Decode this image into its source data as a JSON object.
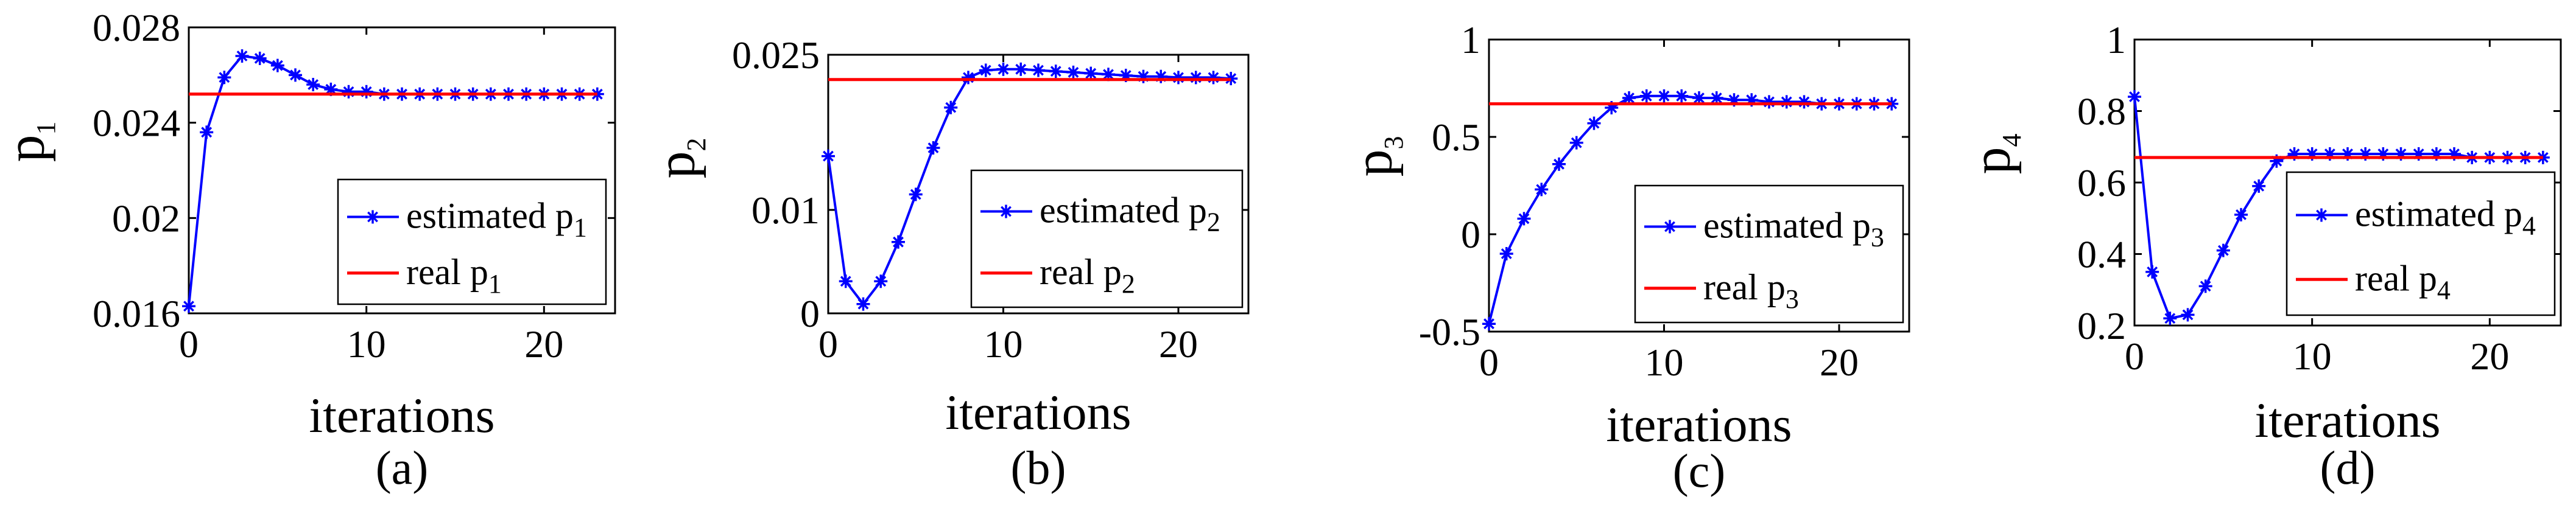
{
  "figure": {
    "colors": {
      "estimated": "#0000ff",
      "real": "#ff0000",
      "axis": "#000000",
      "background": "#ffffff"
    },
    "markers": {
      "estimated": "asterisk"
    }
  },
  "chart_data": [
    {
      "type": "line",
      "panel_label": "(a)",
      "xlabel": "iterations",
      "ylabel": {
        "base": "p",
        "sub": "1"
      },
      "xlim": [
        0,
        24
      ],
      "ylim": [
        0.016,
        0.028
      ],
      "xticks": [
        0,
        10,
        20
      ],
      "xtick_labels": [
        "0",
        "10",
        "20"
      ],
      "yticks": [
        0.016,
        0.02,
        0.024,
        0.028
      ],
      "ytick_labels": [
        "0.016",
        "0.02",
        "0.024",
        "0.028"
      ],
      "grid": false,
      "legend": {
        "placement": "bottom-right"
      },
      "series": [
        {
          "legend": {
            "prefix": "estimated p",
            "sub": "1"
          },
          "color": "#0000ff",
          "marker": "asterisk",
          "x": [
            0,
            1,
            2,
            3,
            4,
            5,
            6,
            7,
            8,
            9,
            10,
            11,
            12,
            13,
            14,
            15,
            16,
            17,
            18,
            19,
            20,
            21,
            22,
            23
          ],
          "y": [
            0.0163,
            0.0236,
            0.0259,
            0.0268,
            0.0267,
            0.0264,
            0.026,
            0.0256,
            0.0254,
            0.0253,
            0.0253,
            0.0252,
            0.0252,
            0.0252,
            0.0252,
            0.0252,
            0.0252,
            0.0252,
            0.0252,
            0.0252,
            0.0252,
            0.0252,
            0.0252,
            0.0252
          ]
        },
        {
          "legend": {
            "prefix": "real p",
            "sub": "1"
          },
          "color": "#ff0000",
          "x": [
            0,
            23
          ],
          "y": [
            0.0252,
            0.0252
          ]
        }
      ]
    },
    {
      "type": "line",
      "panel_label": "(b)",
      "xlabel": "iterations",
      "ylabel": {
        "base": "p",
        "sub": "2"
      },
      "xlim": [
        0,
        24
      ],
      "ylim": [
        0,
        0.025
      ],
      "xticks": [
        0,
        10,
        20
      ],
      "xtick_labels": [
        "0",
        "10",
        "20"
      ],
      "yticks": [
        0,
        0.01,
        0.025
      ],
      "ytick_labels": [
        "0",
        "0.01",
        "0.025"
      ],
      "grid": false,
      "legend": {
        "placement": "right"
      },
      "series": [
        {
          "legend": {
            "prefix": "estimated p",
            "sub": "2"
          },
          "color": "#0000ff",
          "marker": "asterisk",
          "x": [
            0,
            1,
            2,
            3,
            4,
            5,
            6,
            7,
            8,
            9,
            10,
            11,
            12,
            13,
            14,
            15,
            16,
            17,
            18,
            19,
            20,
            21,
            22,
            23
          ],
          "y": [
            0.0152,
            0.0031,
            0.0009,
            0.0031,
            0.0069,
            0.0115,
            0.016,
            0.0199,
            0.0228,
            0.0235,
            0.0236,
            0.0236,
            0.0235,
            0.0234,
            0.0233,
            0.0232,
            0.0231,
            0.023,
            0.0229,
            0.0229,
            0.0228,
            0.0228,
            0.0228,
            0.0227
          ]
        },
        {
          "legend": {
            "prefix": "real p",
            "sub": "2"
          },
          "color": "#ff0000",
          "x": [
            0,
            23
          ],
          "y": [
            0.0226,
            0.0226
          ]
        }
      ]
    },
    {
      "type": "line",
      "panel_label": "(c)",
      "xlabel": "iterations",
      "ylabel": {
        "base": "p",
        "sub": "3"
      },
      "xlim": [
        0,
        24
      ],
      "ylim": [
        -0.5,
        1
      ],
      "xticks": [
        0,
        10,
        20
      ],
      "xtick_labels": [
        "0",
        "10",
        "20"
      ],
      "yticks": [
        -0.5,
        0,
        0.5,
        1
      ],
      "ytick_labels": [
        "-0.5",
        "0",
        "0.5",
        "1"
      ],
      "grid": false,
      "legend": {
        "placement": "bottom-right"
      },
      "series": [
        {
          "legend": {
            "prefix": "estimated p",
            "sub": "3"
          },
          "color": "#0000ff",
          "marker": "asterisk",
          "x": [
            0,
            1,
            2,
            3,
            4,
            5,
            6,
            7,
            8,
            9,
            10,
            11,
            12,
            13,
            14,
            15,
            16,
            17,
            18,
            19,
            20,
            21,
            22,
            23
          ],
          "y": [
            -0.46,
            -0.1,
            0.08,
            0.23,
            0.36,
            0.47,
            0.57,
            0.65,
            0.7,
            0.71,
            0.71,
            0.71,
            0.7,
            0.7,
            0.69,
            0.69,
            0.68,
            0.68,
            0.68,
            0.67,
            0.67,
            0.67,
            0.67,
            0.67
          ]
        },
        {
          "legend": {
            "prefix": "real p",
            "sub": "3"
          },
          "color": "#ff0000",
          "x": [
            0,
            23
          ],
          "y": [
            0.67,
            0.67
          ]
        }
      ]
    },
    {
      "type": "line",
      "panel_label": "(d)",
      "xlabel": "iterations",
      "ylabel": {
        "base": "p",
        "sub": "4"
      },
      "xlim": [
        0,
        24
      ],
      "ylim": [
        0.2,
        1
      ],
      "xticks": [
        0,
        10,
        20
      ],
      "xtick_labels": [
        "0",
        "10",
        "20"
      ],
      "yticks": [
        0.2,
        0.4,
        0.6,
        0.8,
        1
      ],
      "ytick_labels": [
        "0.2",
        "0.4",
        "0.6",
        "0.8",
        "1"
      ],
      "grid": false,
      "legend": {
        "placement": "right"
      },
      "series": [
        {
          "legend": {
            "prefix": "estimated p",
            "sub": "4"
          },
          "color": "#0000ff",
          "marker": "asterisk",
          "x": [
            0,
            1,
            2,
            3,
            4,
            5,
            6,
            7,
            8,
            9,
            10,
            11,
            12,
            13,
            14,
            15,
            16,
            17,
            18,
            19,
            20,
            21,
            22,
            23
          ],
          "y": [
            0.84,
            0.35,
            0.22,
            0.23,
            0.31,
            0.41,
            0.51,
            0.59,
            0.66,
            0.68,
            0.68,
            0.68,
            0.68,
            0.68,
            0.68,
            0.68,
            0.68,
            0.68,
            0.68,
            0.67,
            0.67,
            0.67,
            0.67,
            0.67
          ]
        },
        {
          "legend": {
            "prefix": "real p",
            "sub": "4"
          },
          "color": "#ff0000",
          "x": [
            0,
            23
          ],
          "y": [
            0.67,
            0.67
          ]
        }
      ]
    }
  ]
}
